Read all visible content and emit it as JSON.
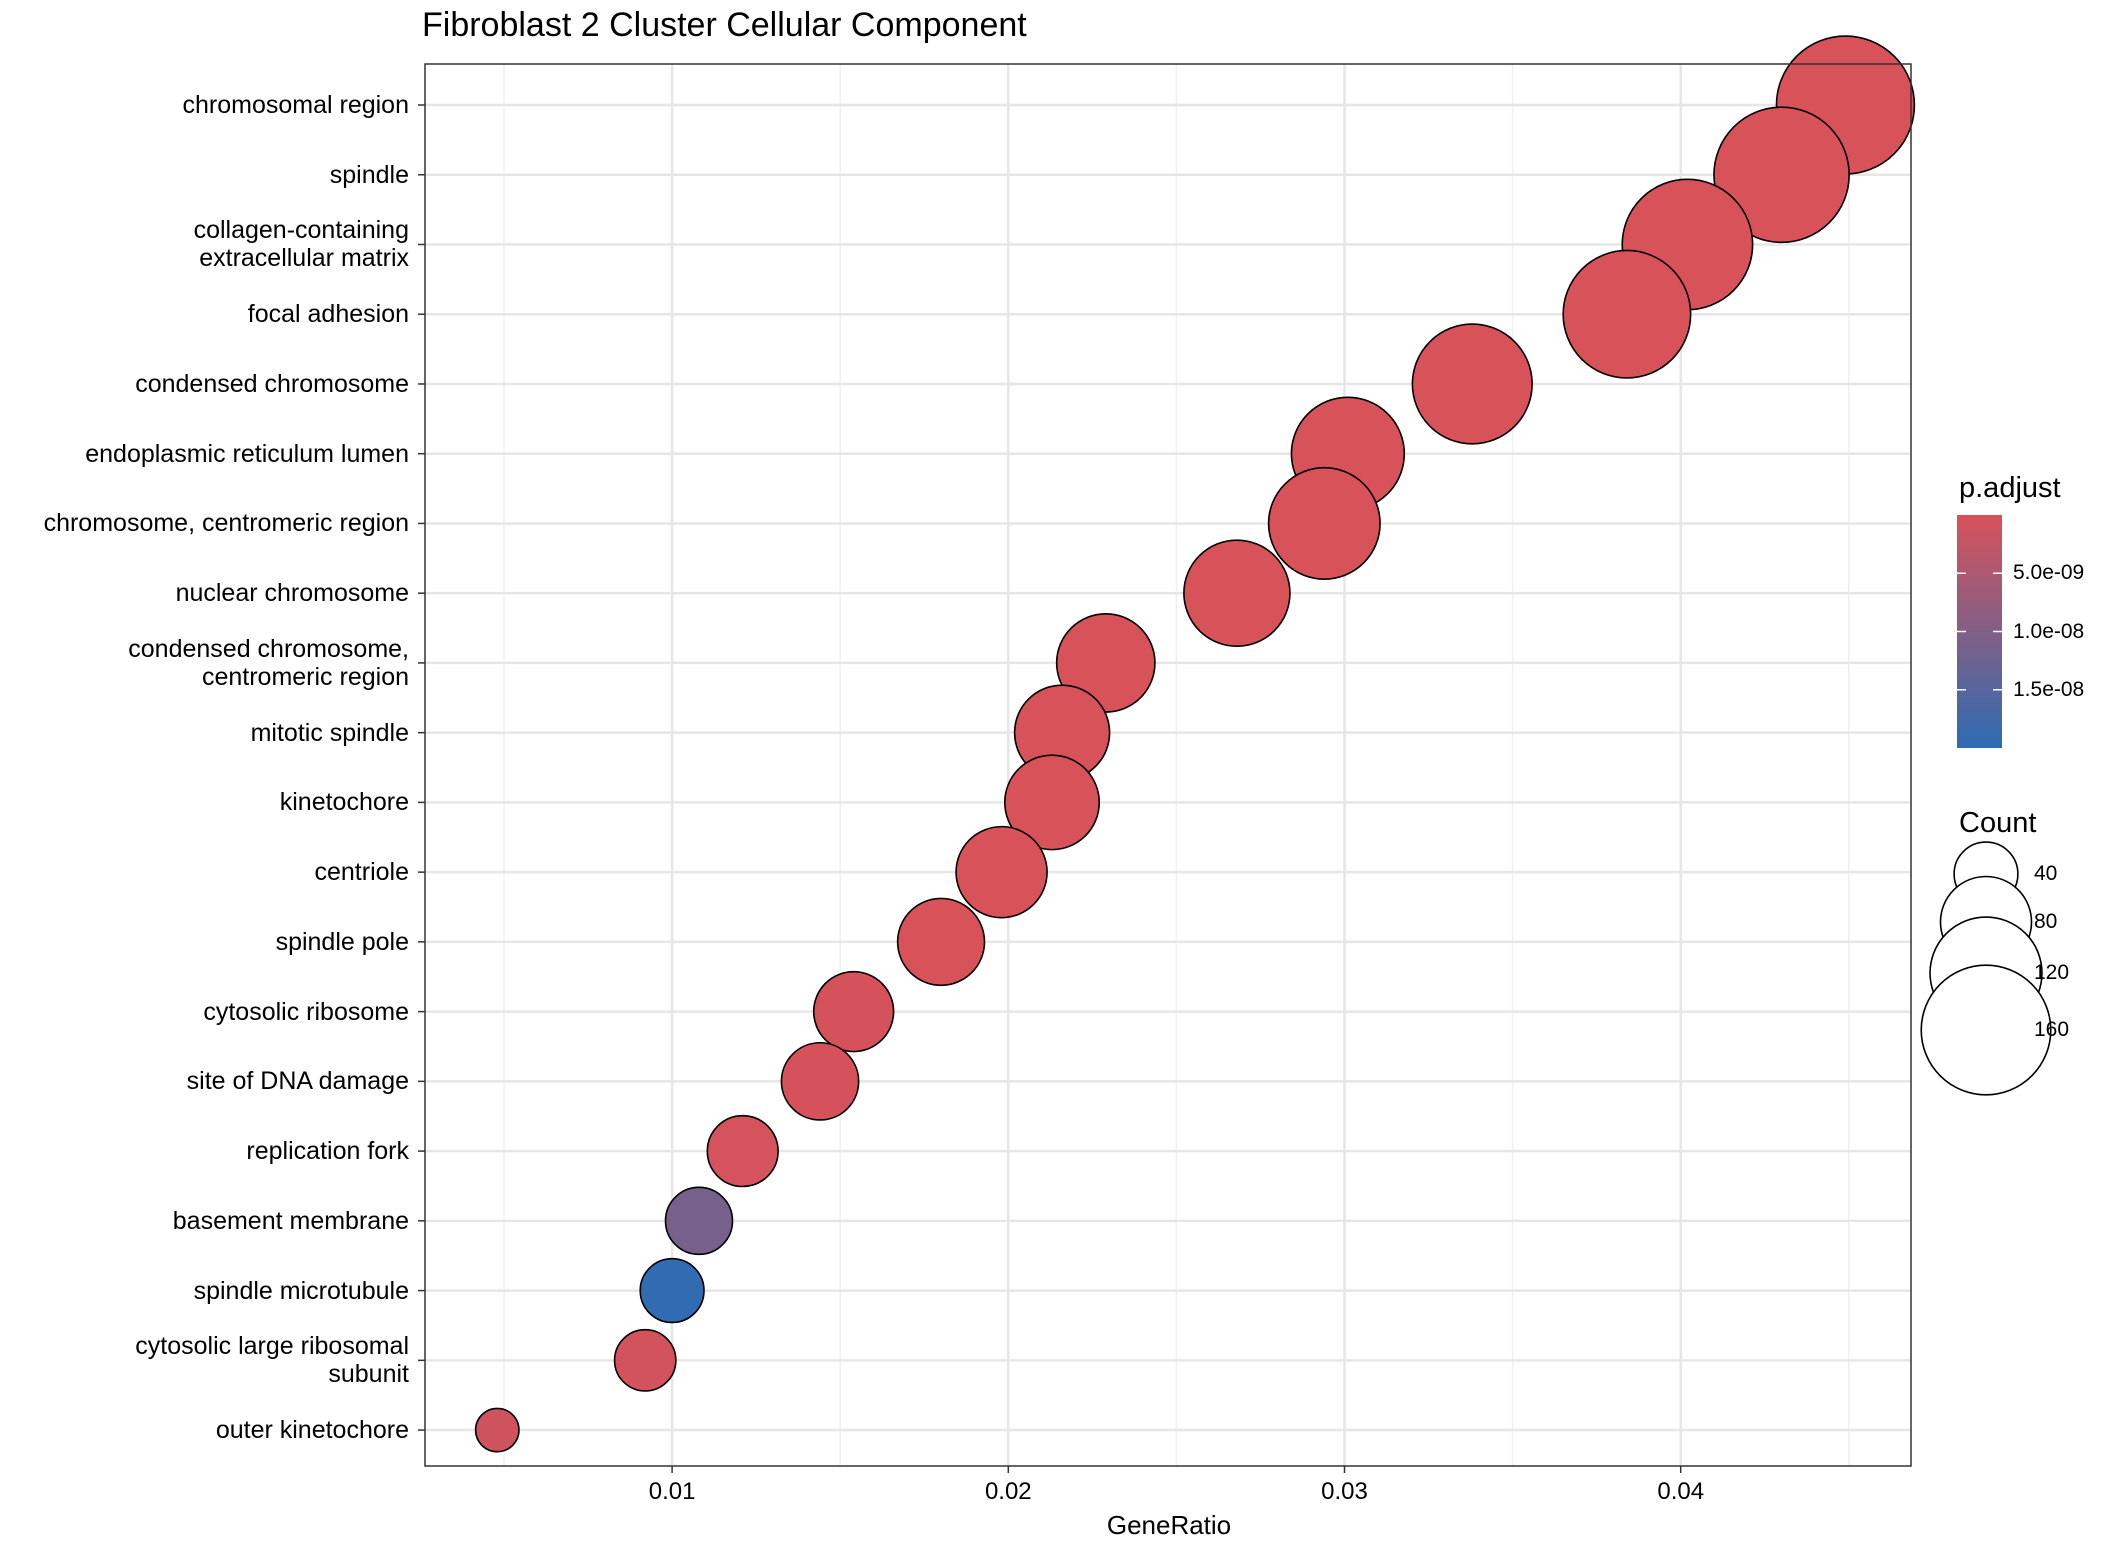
{
  "chart_data": {
    "type": "scatter",
    "title": "Fibroblast 2 Cluster Cellular Component",
    "xlabel": "GeneRatio",
    "ylabel": "",
    "xlim": [
      0.00265,
      0.04685
    ],
    "x_ticks": [
      0.01,
      0.02,
      0.03,
      0.04
    ],
    "x_tick_labels": [
      "0.01",
      "0.02",
      "0.03",
      "0.04"
    ],
    "grid": true,
    "legend_position": "right",
    "color_legend": {
      "title": "p.adjust",
      "low_color": "#d8525a",
      "high_color": "#2d6cb3",
      "range": [
        0,
        2e-08
      ],
      "ticks": [
        5e-09,
        1e-08,
        1.5e-08
      ],
      "tick_labels": [
        "5.0e-09",
        "1.0e-08",
        "1.5e-08"
      ]
    },
    "size_legend": {
      "title": "Count",
      "values": [
        40,
        80,
        120,
        160
      ],
      "labels": [
        "40",
        "80",
        "120",
        "160"
      ]
    },
    "points": [
      {
        "term": [
          "chromosomal region"
        ],
        "x": 0.0449,
        "count": 181,
        "padj": 1e-12
      },
      {
        "term": [
          "spindle"
        ],
        "x": 0.043,
        "count": 174,
        "padj": 1e-12
      },
      {
        "term": [
          "collagen-containing",
          "extracellular matrix"
        ],
        "x": 0.0402,
        "count": 162,
        "padj": 1e-12
      },
      {
        "term": [
          "focal adhesion"
        ],
        "x": 0.0384,
        "count": 155,
        "padj": 1e-12
      },
      {
        "term": [
          "condensed chromosome"
        ],
        "x": 0.0338,
        "count": 137,
        "padj": 1e-12
      },
      {
        "term": [
          "endoplasmic reticulum lumen"
        ],
        "x": 0.0301,
        "count": 122,
        "padj": 2e-11
      },
      {
        "term": [
          "chromosome, centromeric region"
        ],
        "x": 0.0294,
        "count": 119,
        "padj": 1e-12
      },
      {
        "term": [
          "nuclear chromosome"
        ],
        "x": 0.0268,
        "count": 108,
        "padj": 1e-12
      },
      {
        "term": [
          "condensed chromosome,",
          "centromeric region"
        ],
        "x": 0.0229,
        "count": 93,
        "padj": 1e-12
      },
      {
        "term": [
          "mitotic spindle"
        ],
        "x": 0.0216,
        "count": 87,
        "padj": 2e-11
      },
      {
        "term": [
          "kinetochore"
        ],
        "x": 0.0213,
        "count": 86,
        "padj": 1e-12
      },
      {
        "term": [
          "centriole"
        ],
        "x": 0.0198,
        "count": 80,
        "padj": 5e-11
      },
      {
        "term": [
          "spindle pole"
        ],
        "x": 0.018,
        "count": 73,
        "padj": 3e-11
      },
      {
        "term": [
          "cytosolic ribosome"
        ],
        "x": 0.0154,
        "count": 62,
        "padj": 2e-10
      },
      {
        "term": [
          "site of DNA damage"
        ],
        "x": 0.0144,
        "count": 58,
        "padj": 3e-10
      },
      {
        "term": [
          "replication fork"
        ],
        "x": 0.0121,
        "count": 49,
        "padj": 5e-10
      },
      {
        "term": [
          "basement membrane"
        ],
        "x": 0.0108,
        "count": 44,
        "padj": 1.15e-08
      },
      {
        "term": [
          "spindle microtubule"
        ],
        "x": 0.01,
        "count": 40,
        "padj": 1.95e-08
      },
      {
        "term": [
          "cytosolic large ribosomal",
          "subunit"
        ],
        "x": 0.0092,
        "count": 37,
        "padj": 6e-10
      },
      {
        "term": [
          "outer kinetochore"
        ],
        "x": 0.0048,
        "count": 19,
        "padj": 1e-09
      }
    ]
  }
}
